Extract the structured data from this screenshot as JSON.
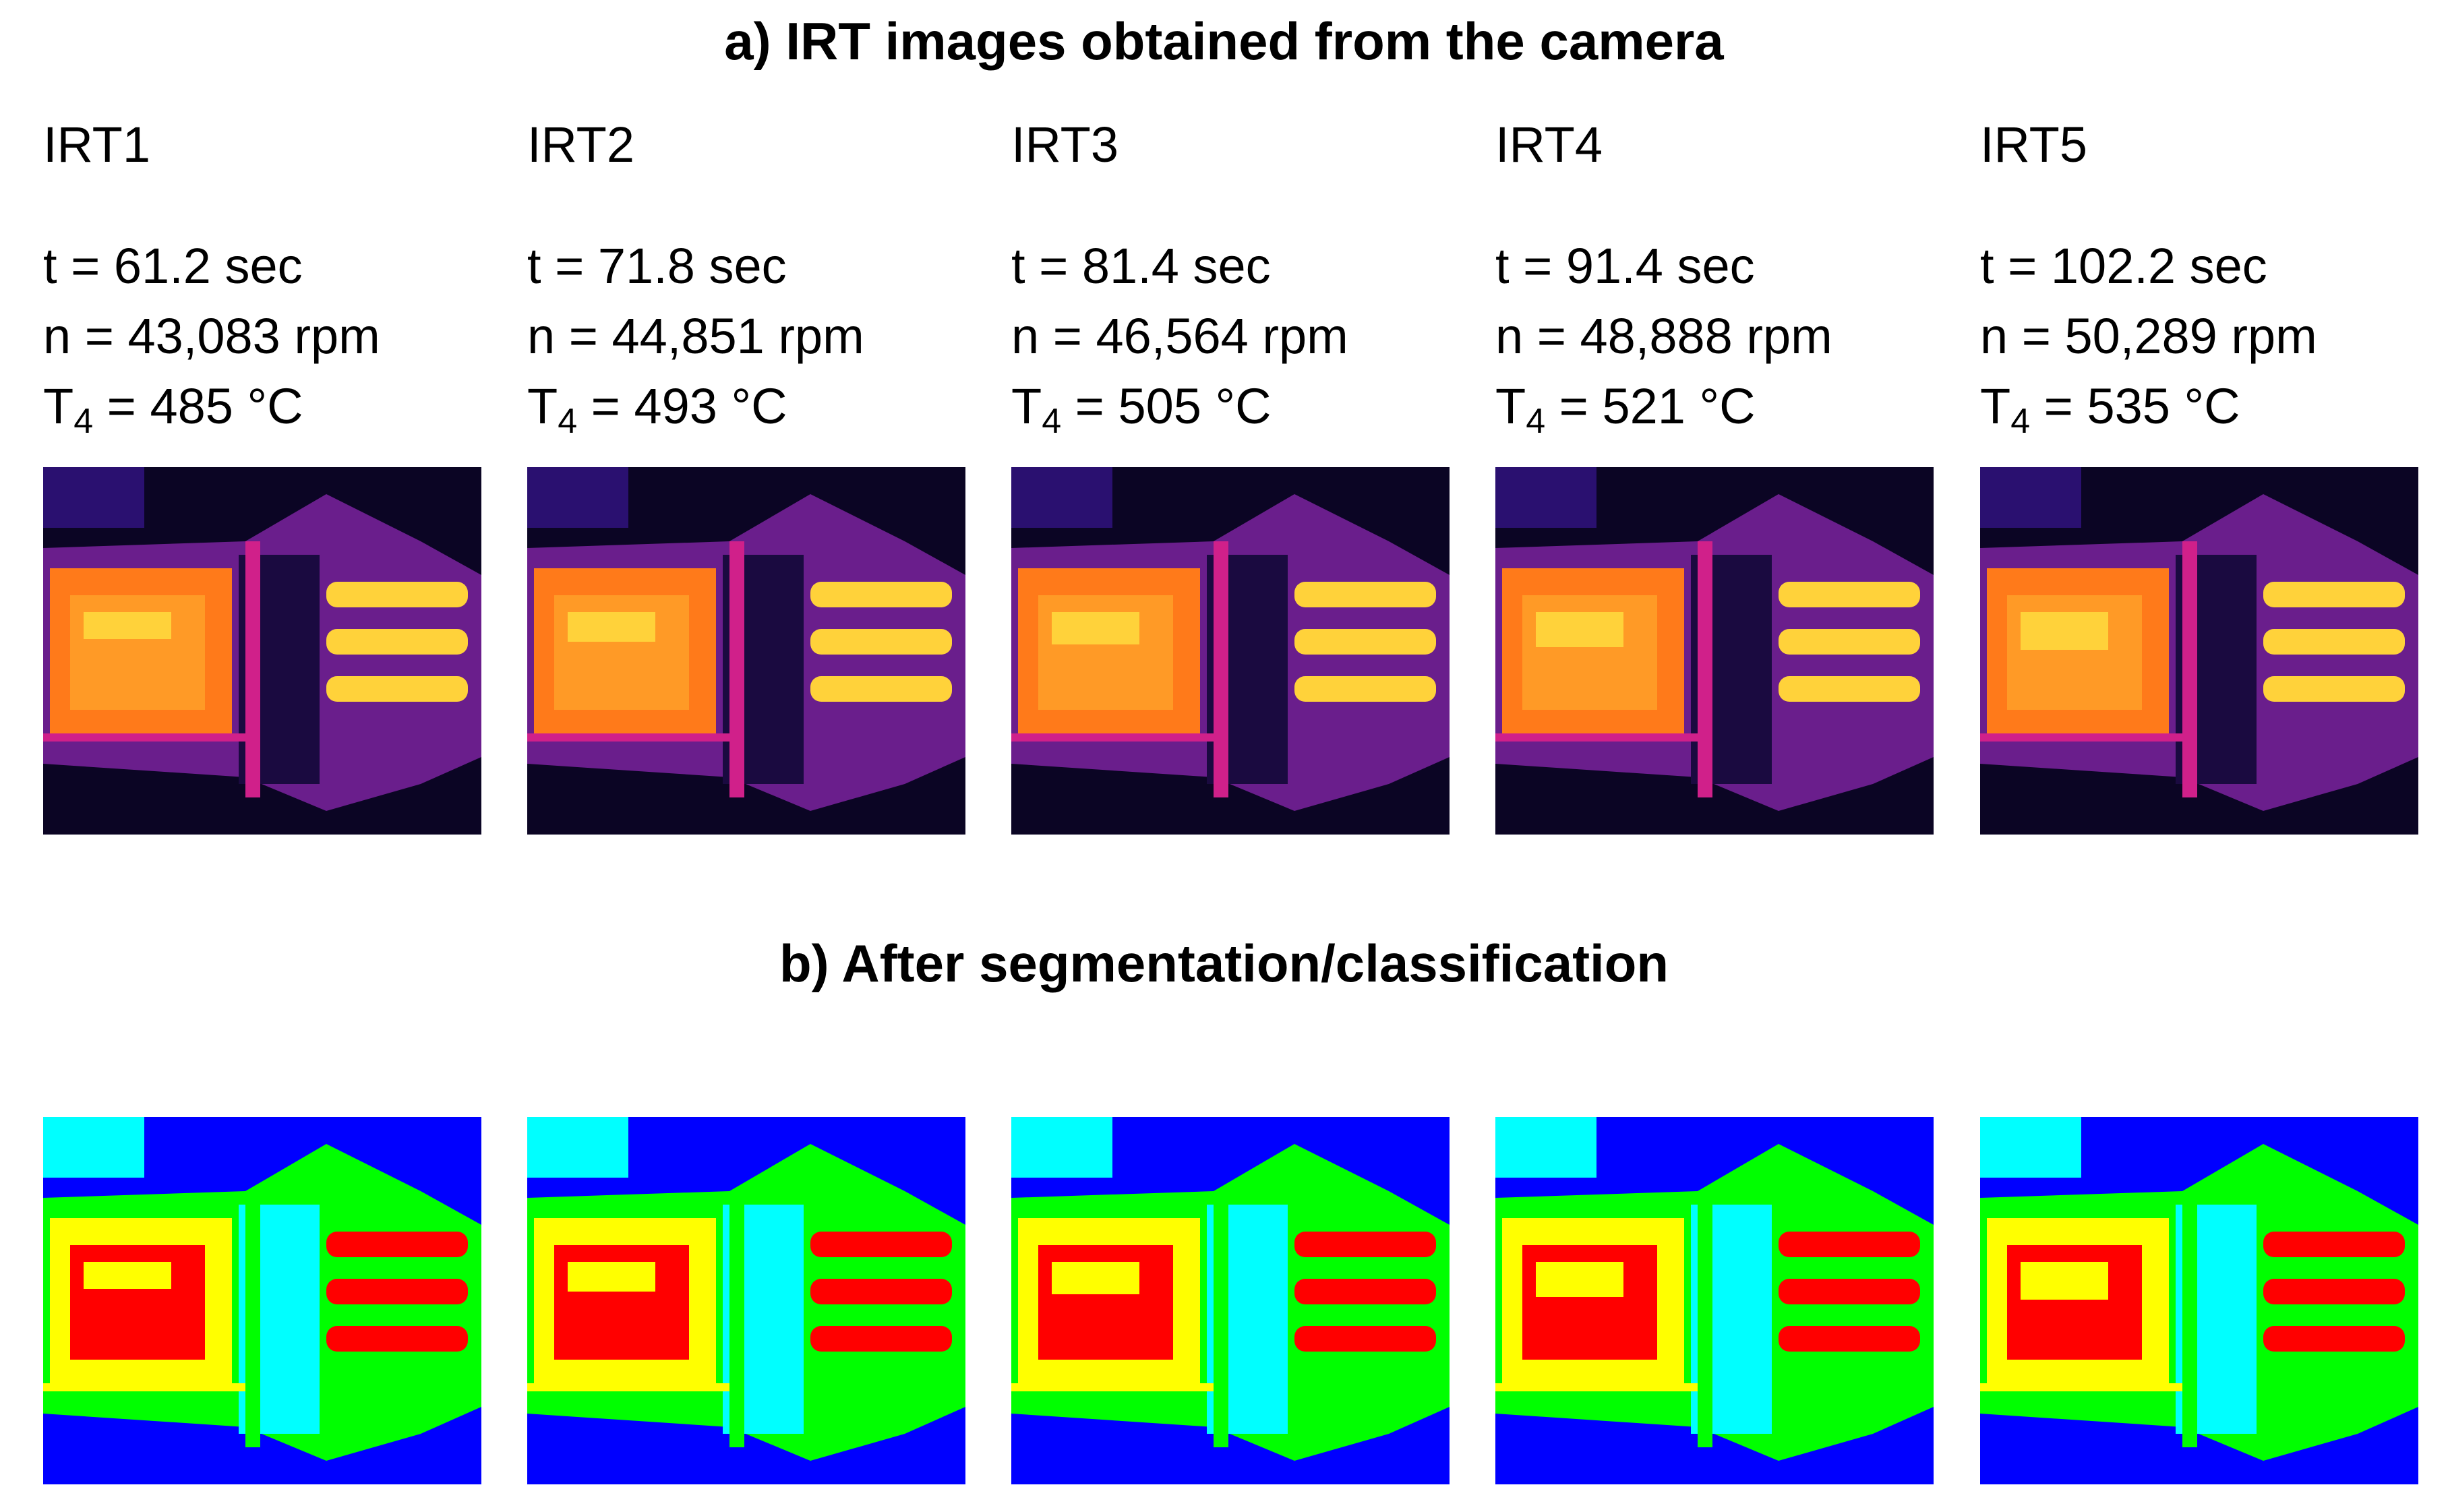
{
  "section_a_title": "a) IRT images obtained from the camera",
  "section_b_title": "b) After segmentation/classification",
  "panels": [
    {
      "name": "IRT1",
      "t": "t = 61.2 sec",
      "n": "n = 43,083 rpm",
      "T_prefix": "T",
      "T_sub": "4",
      "T_suffix": " = 485 °C"
    },
    {
      "name": "IRT2",
      "t": "t = 71.8 sec",
      "n": "n = 44,851 rpm",
      "T_prefix": "T",
      "T_sub": "4",
      "T_suffix": " = 493 °C"
    },
    {
      "name": "IRT3",
      "t": "t = 81.4 sec",
      "n": "n = 46,564 rpm",
      "T_prefix": "T",
      "T_sub": "4",
      "T_suffix": " = 505 °C"
    },
    {
      "name": "IRT4",
      "t": "t = 91.4 sec",
      "n": "n = 48,888 rpm",
      "T_prefix": "T",
      "T_sub": "4",
      "T_suffix": " = 521 °C"
    },
    {
      "name": "IRT5",
      "t": "t = 102.2 sec",
      "n": "n = 50,289 rpm",
      "T_prefix": "T",
      "T_sub": "4",
      "T_suffix": " = 535 °C"
    }
  ],
  "colors": {
    "ir_background": "#0b0524",
    "ir_hot": "#ffd23a",
    "ir_warm": "#ff7a1a",
    "ir_mid": "#d0208a",
    "ir_cool": "#6a1e8c",
    "seg_background": "#0000ff",
    "seg_cyan": "#00ffff",
    "seg_green": "#00ff00",
    "seg_yellow": "#ffff00",
    "seg_red": "#ff0000"
  }
}
